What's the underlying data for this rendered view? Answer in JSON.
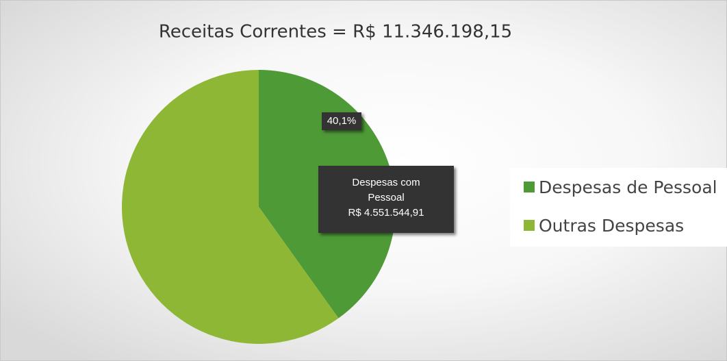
{
  "chart_data": {
    "type": "pie",
    "title": "Receitas Correntes = R$ 11.346.198,15",
    "categories": [
      "Despesas de Pessoal",
      "Outras Despesas"
    ],
    "values": [
      40.1,
      59.9
    ],
    "value_labels": [
      "40,1%",
      null
    ],
    "colors": [
      "#4e9a37",
      "#8db735"
    ],
    "annotation": {
      "label": "Despesas com Pessoal",
      "amount": "R$ 4.551.544,91"
    },
    "legend": "right"
  }
}
